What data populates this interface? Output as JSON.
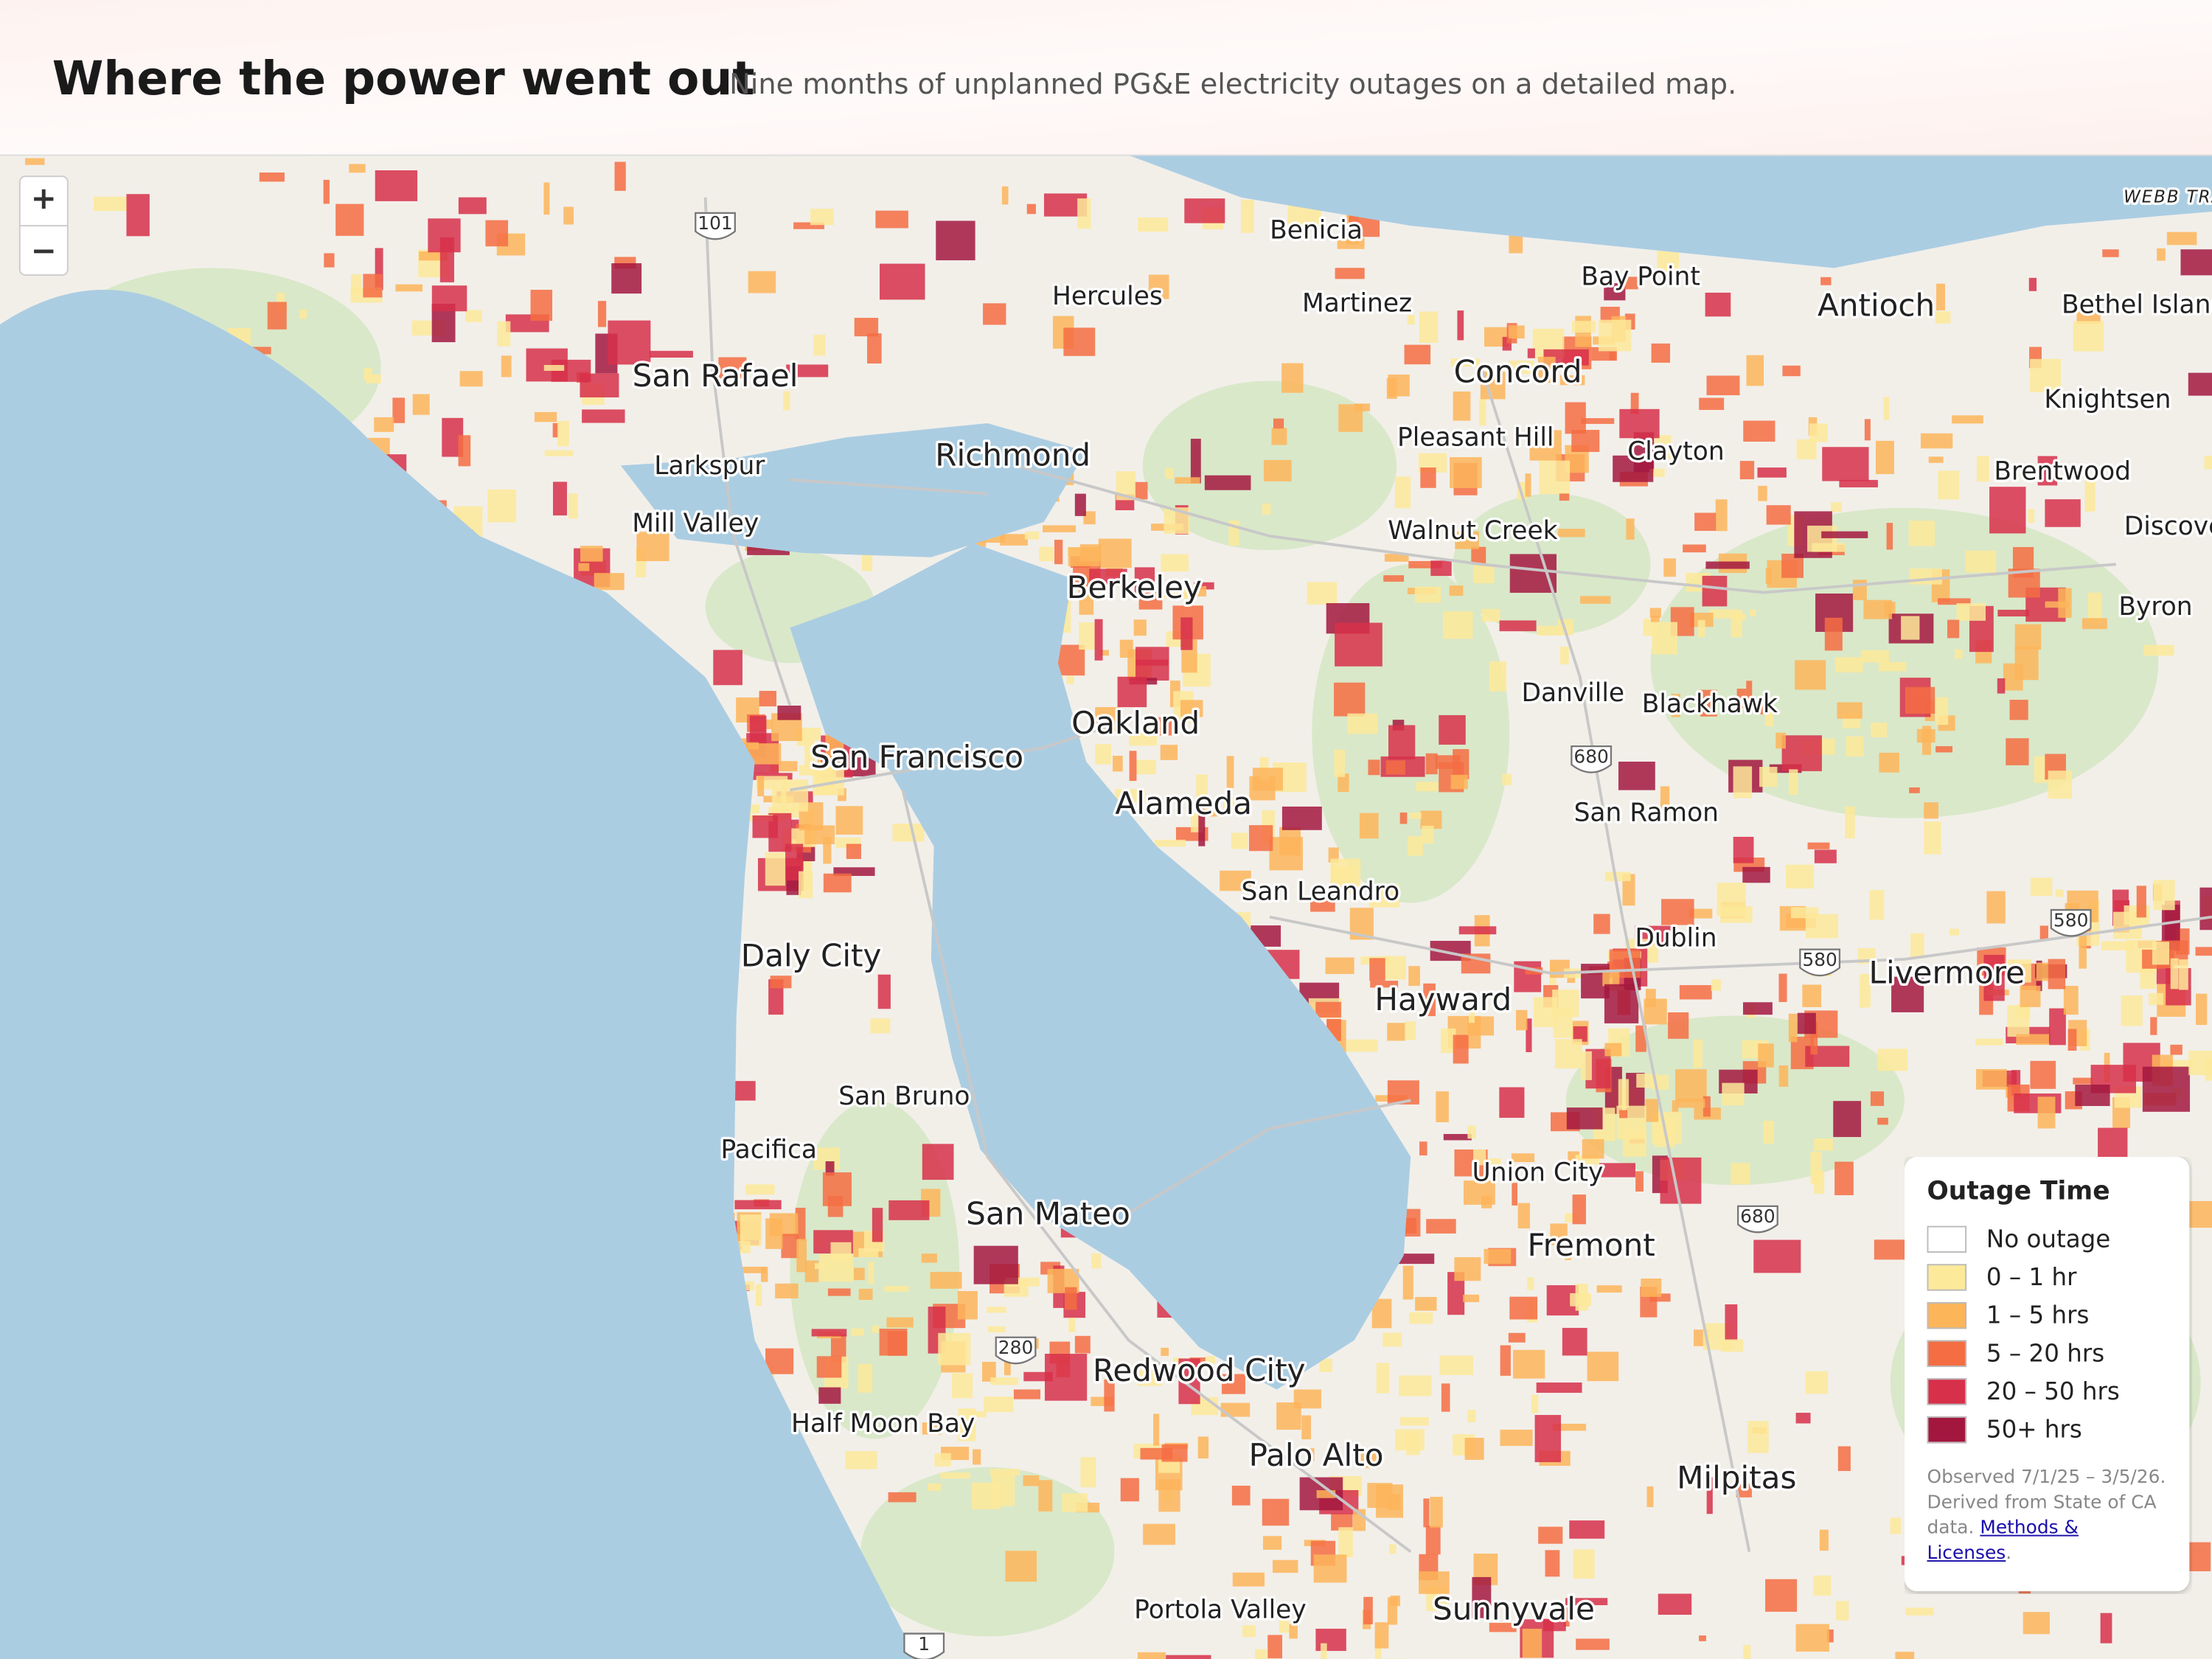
{
  "header": {
    "title": "Where the power went out",
    "subtitle": "Nine months of unplanned PG&E electricity outages on a detailed map."
  },
  "zoom_controls": [
    "+",
    "−"
  ],
  "places": [
    "Benicia",
    "Hercules",
    "Martinez",
    "Bay Point",
    "Antioch",
    "Bethel Island",
    "San Rafael",
    "Concord",
    "Knightsen",
    "Larkspur",
    "Richmond",
    "Pleasant Hill",
    "Clayton",
    "Brentwood",
    "Mill Valley",
    "Walnut Creek",
    "Discovery Bay",
    "Berkeley",
    "Byron",
    "Danville",
    "Blackhawk",
    "Oakland",
    "San Francisco",
    "Alameda",
    "San Ramon",
    "San Leandro",
    "Dublin",
    "Livermore",
    "Daly City",
    "Hayward",
    "San Bruno",
    "Pacifica",
    "Union City",
    "San Mateo",
    "Fremont",
    "Redwood City",
    "Half Moon Bay",
    "Palo Alto",
    "Milpitas",
    "Portola Valley",
    "Sunnyvale",
    "WEBB TRACT"
  ],
  "highways": [
    "101",
    "680",
    "580",
    "580",
    "680",
    "280",
    "1"
  ],
  "legend": {
    "title": "Outage Time",
    "items": [
      {
        "label": "No outage",
        "color": "#ffffff"
      },
      {
        "label": "0 – 1 hr",
        "color": "#fde99a"
      },
      {
        "label": "1 – 5 hrs",
        "color": "#fdb55a"
      },
      {
        "label": "5 – 20 hrs",
        "color": "#f46d43"
      },
      {
        "label": "20 – 50 hrs",
        "color": "#d7304a"
      },
      {
        "label": "50+ hrs",
        "color": "#a3173f"
      }
    ],
    "note": "Observed 7/1/25 – 3/5/26. Derived from State of CA data.",
    "link": "Methods & Licenses",
    "note_end": "."
  }
}
